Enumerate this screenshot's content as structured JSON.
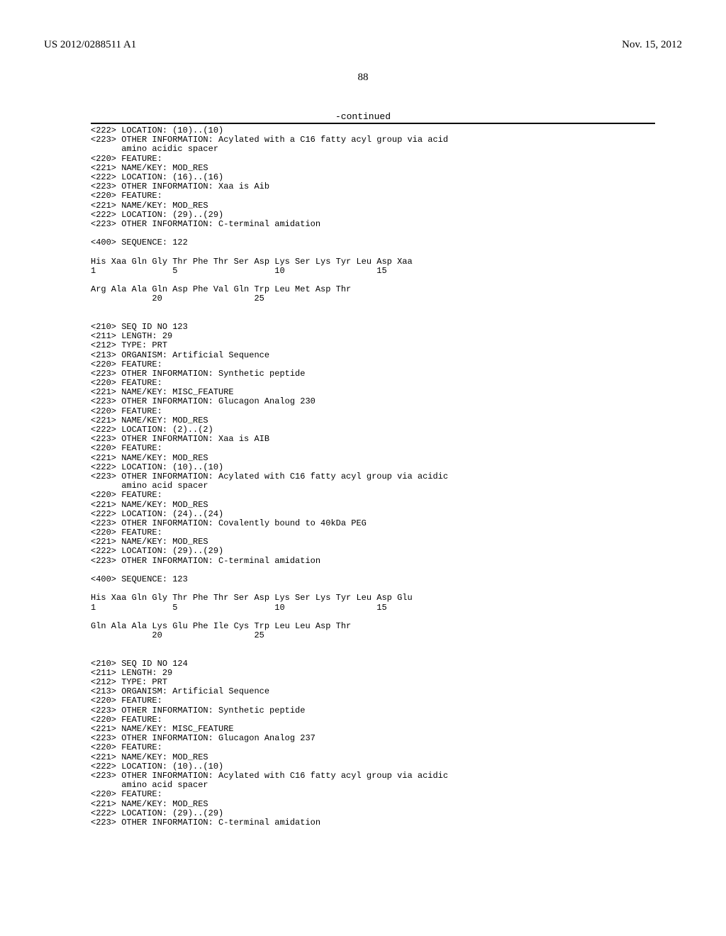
{
  "header": {
    "publication_number": "US 2012/0288511 A1",
    "publication_date": "Nov. 15, 2012",
    "page_number": "88",
    "continued_label": "-continued"
  },
  "preamble": {
    "lines": [
      "<222> LOCATION: (10)..(10)",
      "<223> OTHER INFORMATION: Acylated with a C16 fatty acyl group via acid",
      "      amino acidic spacer",
      "<220> FEATURE:",
      "<221> NAME/KEY: MOD_RES",
      "<222> LOCATION: (16)..(16)",
      "<223> OTHER INFORMATION: Xaa is Aib",
      "<220> FEATURE:",
      "<221> NAME/KEY: MOD_RES",
      "<222> LOCATION: (29)..(29)",
      "<223> OTHER INFORMATION: C-terminal amidation",
      "",
      "<400> SEQUENCE: 122",
      "",
      "His Xaa Gln Gly Thr Phe Thr Ser Asp Lys Ser Lys Tyr Leu Asp Xaa",
      "1               5                   10                  15",
      "",
      "Arg Ala Ala Gln Asp Phe Val Gln Trp Leu Met Asp Thr",
      "            20                  25",
      ""
    ]
  },
  "blocks": [
    {
      "lines": [
        "",
        "<210> SEQ ID NO 123",
        "<211> LENGTH: 29",
        "<212> TYPE: PRT",
        "<213> ORGANISM: Artificial Sequence",
        "<220> FEATURE:",
        "<223> OTHER INFORMATION: Synthetic peptide",
        "<220> FEATURE:",
        "<221> NAME/KEY: MISC_FEATURE",
        "<223> OTHER INFORMATION: Glucagon Analog 230",
        "<220> FEATURE:",
        "<221> NAME/KEY: MOD_RES",
        "<222> LOCATION: (2)..(2)",
        "<223> OTHER INFORMATION: Xaa is AIB",
        "<220> FEATURE:",
        "<221> NAME/KEY: MOD_RES",
        "<222> LOCATION: (10)..(10)",
        "<223> OTHER INFORMATION: Acylated with C16 fatty acyl group via acidic",
        "      amino acid spacer",
        "<220> FEATURE:",
        "<221> NAME/KEY: MOD_RES",
        "<222> LOCATION: (24)..(24)",
        "<223> OTHER INFORMATION: Covalently bound to 40kDa PEG",
        "<220> FEATURE:",
        "<221> NAME/KEY: MOD_RES",
        "<222> LOCATION: (29)..(29)",
        "<223> OTHER INFORMATION: C-terminal amidation",
        "",
        "<400> SEQUENCE: 123",
        "",
        "His Xaa Gln Gly Thr Phe Thr Ser Asp Lys Ser Lys Tyr Leu Asp Glu",
        "1               5                   10                  15",
        "",
        "Gln Ala Ala Lys Glu Phe Ile Cys Trp Leu Leu Asp Thr",
        "            20                  25",
        ""
      ]
    },
    {
      "lines": [
        "",
        "<210> SEQ ID NO 124",
        "<211> LENGTH: 29",
        "<212> TYPE: PRT",
        "<213> ORGANISM: Artificial Sequence",
        "<220> FEATURE:",
        "<223> OTHER INFORMATION: Synthetic peptide",
        "<220> FEATURE:",
        "<221> NAME/KEY: MISC_FEATURE",
        "<223> OTHER INFORMATION: Glucagon Analog 237",
        "<220> FEATURE:",
        "<221> NAME/KEY: MOD_RES",
        "<222> LOCATION: (10)..(10)",
        "<223> OTHER INFORMATION: Acylated with C16 fatty acyl group via acidic",
        "      amino acid spacer",
        "<220> FEATURE:",
        "<221> NAME/KEY: MOD_RES",
        "<222> LOCATION: (29)..(29)",
        "<223> OTHER INFORMATION: C-terminal amidation"
      ]
    }
  ]
}
